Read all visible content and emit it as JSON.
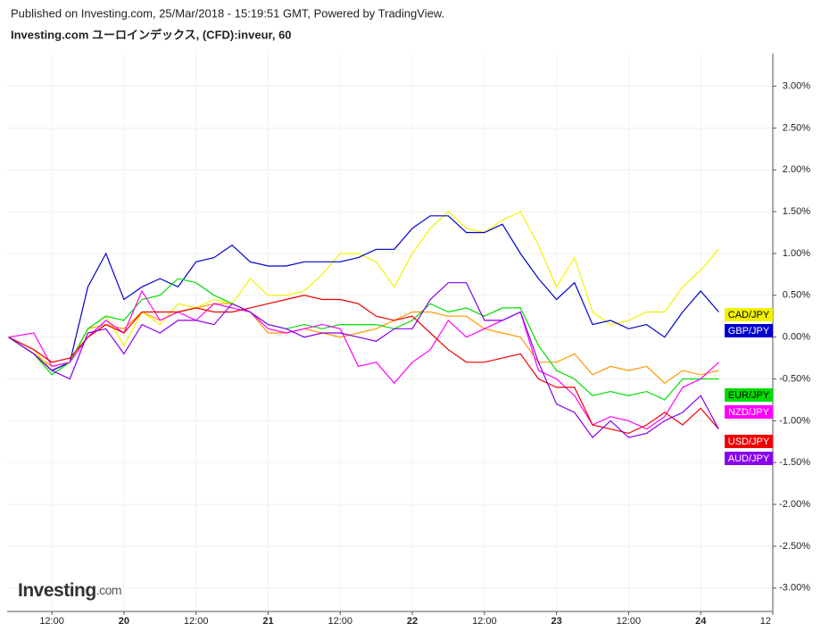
{
  "published": "Published on Investing.com, 25/Mar/2018 - 15:19:51 GMT, Powered by TradingView.",
  "logo": {
    "brand": "Investing",
    "suffix": ".com"
  },
  "chart_data": {
    "type": "line",
    "title": "Investing.com ユーロインデックス, (CFD):inveur, 60",
    "x": [
      19.2,
      19.375,
      19.5,
      19.625,
      19.75,
      19.875,
      20,
      20.125,
      20.25,
      20.375,
      20.5,
      20.625,
      20.75,
      20.875,
      21,
      21.125,
      21.25,
      21.375,
      21.5,
      21.625,
      21.75,
      21.875,
      22,
      22.125,
      22.25,
      22.375,
      22.5,
      22.625,
      22.75,
      22.875,
      23,
      23.125,
      23.25,
      23.375,
      23.5,
      23.625,
      23.75,
      23.875,
      24,
      24.125
    ],
    "series": [
      {
        "color": "#ff9900",
        "values": [
          0,
          -0.2,
          -0.35,
          -0.3,
          0.1,
          0.15,
          0.1,
          0.3,
          0.2,
          0.3,
          0.35,
          0.4,
          0.4,
          0.3,
          0.05,
          0.05,
          0.1,
          0.05,
          0.0,
          0.05,
          0.1,
          0.2,
          0.3,
          0.3,
          0.25,
          0.25,
          0.1,
          0.05,
          0.0,
          -0.3,
          -0.3,
          -0.2,
          -0.45,
          -0.35,
          -0.4,
          -0.35,
          -0.55,
          -0.4,
          -0.45,
          -0.4
        ]
      },
      {
        "name": "CAD/JPY",
        "color": "#f2f200",
        "values": [
          0,
          -0.15,
          -0.4,
          -0.3,
          0.1,
          0.25,
          -0.1,
          0.3,
          0.15,
          0.4,
          0.35,
          0.45,
          0.4,
          0.7,
          0.5,
          0.5,
          0.55,
          0.75,
          1.0,
          1.0,
          0.9,
          0.6,
          1.0,
          1.3,
          1.5,
          1.3,
          1.25,
          1.4,
          1.5,
          1.1,
          0.6,
          0.95,
          0.3,
          0.15,
          0.2,
          0.3,
          0.3,
          0.6,
          0.8,
          1.05
        ]
      },
      {
        "name": "GBP/JPY",
        "color": "#0000cc",
        "values": [
          0,
          -0.2,
          -0.4,
          -0.3,
          0.6,
          1.0,
          0.45,
          0.6,
          0.7,
          0.6,
          0.9,
          0.95,
          1.1,
          0.9,
          0.85,
          0.85,
          0.9,
          0.9,
          0.9,
          0.95,
          1.05,
          1.05,
          1.3,
          1.45,
          1.45,
          1.25,
          1.25,
          1.35,
          1.0,
          0.7,
          0.45,
          0.65,
          0.15,
          0.2,
          0.1,
          0.15,
          0.0,
          0.3,
          0.55,
          0.3
        ]
      },
      {
        "name": "EUR/JPY",
        "color": "#00dd00",
        "values": [
          0,
          -0.2,
          -0.45,
          -0.3,
          0.1,
          0.25,
          0.2,
          0.45,
          0.5,
          0.7,
          0.65,
          0.5,
          0.4,
          0.3,
          0.15,
          0.1,
          0.15,
          0.1,
          0.15,
          0.15,
          0.15,
          0.1,
          0.2,
          0.4,
          0.3,
          0.35,
          0.25,
          0.35,
          0.35,
          -0.1,
          -0.4,
          -0.5,
          -0.7,
          -0.65,
          -0.7,
          -0.65,
          -0.75,
          -0.5,
          -0.5,
          -0.5
        ]
      },
      {
        "name": "NZD/JPY",
        "color": "#ff00ff",
        "values": [
          0,
          0.05,
          -0.35,
          -0.3,
          0,
          0.2,
          0.05,
          0.55,
          0.2,
          0.3,
          0.2,
          0.4,
          0.35,
          0.3,
          0.1,
          0.05,
          0.1,
          0.15,
          0.1,
          -0.35,
          -0.3,
          -0.55,
          -0.3,
          -0.15,
          0.2,
          0,
          0.1,
          0.2,
          0.3,
          -0.4,
          -0.5,
          -0.7,
          -1.05,
          -0.95,
          -1.0,
          -1.1,
          -0.95,
          -0.6,
          -0.5,
          -0.3
        ]
      },
      {
        "name": "USD/JPY",
        "color": "#ee0000",
        "values": [
          0,
          -0.15,
          -0.3,
          -0.25,
          0,
          0.15,
          0.05,
          0.3,
          0.3,
          0.3,
          0.35,
          0.3,
          0.3,
          0.35,
          0.4,
          0.45,
          0.5,
          0.45,
          0.45,
          0.4,
          0.25,
          0.2,
          0.25,
          0.05,
          -0.15,
          -0.3,
          -0.3,
          -0.25,
          -0.2,
          -0.5,
          -0.6,
          -0.6,
          -1.05,
          -1.1,
          -1.15,
          -1.05,
          -0.9,
          -1.05,
          -0.85,
          -1.1
        ]
      },
      {
        "name": "AUD/JPY",
        "color": "#8800ee",
        "values": [
          0,
          -0.2,
          -0.4,
          -0.5,
          0.05,
          0.1,
          -0.2,
          0.15,
          0.05,
          0.2,
          0.2,
          0.15,
          0.4,
          0.3,
          0.15,
          0.1,
          0.0,
          0.05,
          0.05,
          0.0,
          -0.05,
          0.1,
          0.1,
          0.45,
          0.65,
          0.65,
          0.2,
          0.2,
          0.3,
          -0.3,
          -0.8,
          -0.9,
          -1.2,
          -1.0,
          -1.2,
          -1.15,
          -1.0,
          -0.9,
          -0.7,
          -1.1
        ]
      }
    ],
    "xlim": [
      19.19,
      24.5
    ],
    "xticks": [
      {
        "value": 19.5,
        "label": "12:00"
      },
      20,
      {
        "value": 20.5,
        "label": "12:00"
      },
      21,
      {
        "value": 21.5,
        "label": "12:00"
      },
      22,
      {
        "value": 22.5,
        "label": "12:00"
      },
      23,
      {
        "value": 23.5,
        "label": "12:00"
      },
      24,
      {
        "value": 24.5,
        "label": "12"
      }
    ],
    "ylim": [
      -3.28,
      3.39
    ],
    "yticks": [
      {
        "value": -3,
        "label": "-3.00%"
      },
      {
        "value": -2.5,
        "label": "-2.50%"
      },
      {
        "value": -2,
        "label": "-2.00%"
      },
      {
        "value": -1.5,
        "label": "-1.50%"
      },
      {
        "value": -1,
        "label": "-1.00%"
      },
      {
        "value": -0.5,
        "label": "-0.50%"
      },
      {
        "value": 0,
        "label": "0.00%"
      },
      {
        "value": 0.5,
        "label": "0.50%"
      },
      {
        "value": 1,
        "label": "1.00%"
      },
      {
        "value": 1.5,
        "label": "1.50%"
      },
      {
        "value": 2,
        "label": "2.00%"
      },
      {
        "value": 2.5,
        "label": "2.50%"
      },
      {
        "value": 3,
        "label": "3.00%"
      }
    ],
    "grid": true
  }
}
